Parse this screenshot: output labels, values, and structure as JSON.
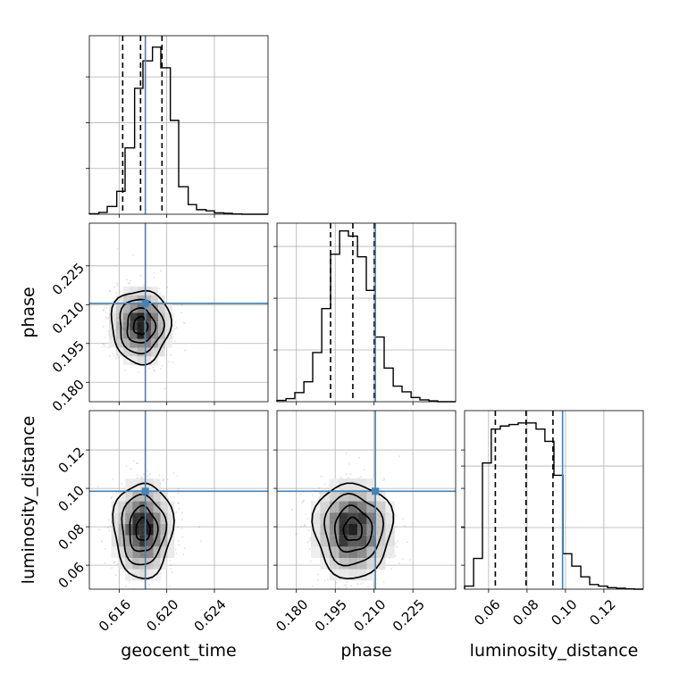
{
  "chart_data": {
    "type": "corner",
    "parameters": [
      {
        "name": "geocent_time",
        "label": "geocent_time",
        "range": [
          0.6135,
          0.6285
        ],
        "ticks": [
          0.616,
          0.62,
          0.624
        ],
        "tick_labels": [
          "0.616",
          "0.620",
          "0.624"
        ],
        "truth": 0.6182,
        "quantiles": [
          0.6163,
          0.6178,
          0.6196
        ]
      },
      {
        "name": "phase",
        "label": "phase",
        "range": [
          0.1725,
          0.2415
        ],
        "ticks": [
          0.18,
          0.195,
          0.21,
          0.225
        ],
        "tick_labels": [
          "0.180",
          "0.195",
          "0.210",
          "0.225"
        ],
        "truth": 0.2105,
        "quantiles": [
          0.1932,
          0.2018,
          0.2101
        ]
      },
      {
        "name": "luminosity_distance",
        "label": "luminosity_distance",
        "range": [
          0.0475,
          0.1405
        ],
        "ticks": [
          0.06,
          0.08,
          0.1,
          0.12
        ],
        "tick_labels": [
          "0.06",
          "0.08",
          "0.10",
          "0.12"
        ],
        "truth": 0.0985,
        "quantiles": [
          0.0635,
          0.0795,
          0.0935
        ]
      }
    ],
    "hist1d": [
      {
        "param": "geocent_time",
        "bins": [
          0.6135,
          0.6143,
          0.615,
          0.6158,
          0.6165,
          0.6173,
          0.618,
          0.6188,
          0.6195,
          0.6203,
          0.621,
          0.6218,
          0.6225,
          0.6233,
          0.624,
          0.6248,
          0.6255,
          0.6263,
          0.627,
          0.6278,
          0.6285
        ],
        "counts": [
          0.2,
          0.8,
          3.4,
          10.0,
          29.0,
          55.0,
          67.0,
          73.0,
          64.0,
          41.0,
          12.0,
          4.2,
          2.0,
          1.5,
          0.6,
          0.4,
          0.1,
          0.0,
          0.0,
          0.0
        ],
        "ymax": 78
      },
      {
        "param": "phase",
        "bins": [
          0.1725,
          0.176,
          0.1794,
          0.1829,
          0.1863,
          0.1898,
          0.1932,
          0.1967,
          0.2001,
          0.2036,
          0.207,
          0.2105,
          0.2139,
          0.2174,
          0.2208,
          0.2243,
          0.2277,
          0.2312,
          0.2346,
          0.2381,
          0.2415
        ],
        "counts": [
          0.5,
          1.2,
          3.5,
          7.7,
          19.0,
          36.0,
          57.0,
          66.0,
          64.0,
          56.0,
          43.0,
          25.0,
          13.0,
          6.0,
          3.8,
          1.6,
          0.7,
          0.3,
          0.0,
          0.0
        ],
        "ymax": 69
      },
      {
        "param": "luminosity_distance",
        "bins": [
          0.0475,
          0.0522,
          0.0568,
          0.0614,
          0.0661,
          0.0707,
          0.0754,
          0.08,
          0.0847,
          0.0893,
          0.094,
          0.0987,
          0.1033,
          0.108,
          0.1126,
          0.1172,
          0.1219,
          0.1265,
          0.1312,
          0.1358,
          0.1405
        ],
        "counts": [
          1.0,
          10.0,
          41.0,
          52.0,
          53.0,
          53.5,
          54.0,
          54.0,
          52.0,
          48.0,
          37.0,
          11.5,
          7.5,
          4.0,
          1.5,
          1.0,
          0.5,
          0.3,
          0.1,
          0.0
        ],
        "ymax": 58
      }
    ],
    "hist2d": [
      {
        "x": "geocent_time",
        "y": "phase",
        "center": [
          0.6178,
          0.2018
        ],
        "sigma": [
          0.00118,
          0.00675
        ]
      },
      {
        "x": "geocent_time",
        "y": "luminosity_distance",
        "center": [
          0.618,
          0.0785
        ],
        "sigma": [
          0.00118,
          0.0118
        ]
      },
      {
        "x": "phase",
        "y": "luminosity_distance",
        "center": [
          0.2018,
          0.0785
        ],
        "sigma": [
          0.0072,
          0.0118
        ]
      }
    ],
    "truth_color": "#4682b4",
    "hist_color": "#000000",
    "grid": true,
    "legend": "none"
  }
}
